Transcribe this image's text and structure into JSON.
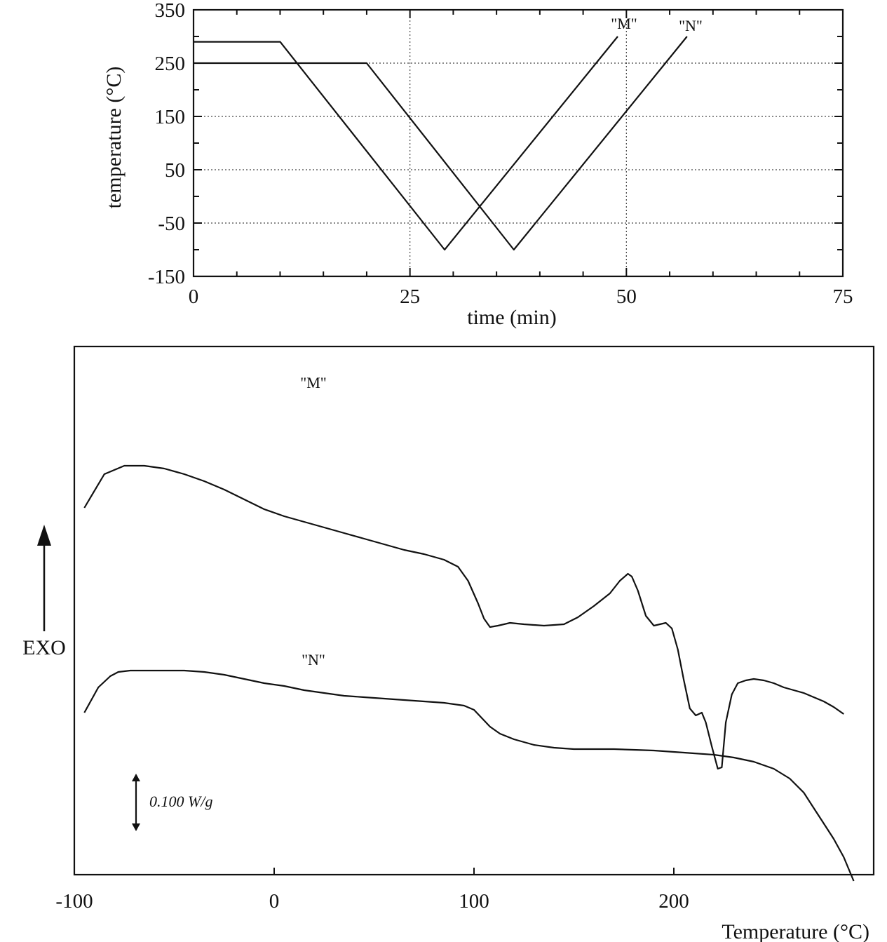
{
  "chart_data": [
    {
      "type": "line",
      "title": "",
      "xlabel": "time (min)",
      "ylabel": "temperature (°C)",
      "xlim": [
        0,
        75
      ],
      "ylim": [
        -150,
        350
      ],
      "xticks": [
        "0",
        "25",
        "50",
        "75"
      ],
      "yticks": [
        "350",
        "250",
        "150",
        "50",
        "-50",
        "-150"
      ],
      "grid": true,
      "series": [
        {
          "name": "\"M\"",
          "x": [
            0,
            10,
            29,
            49
          ],
          "y": [
            290,
            290,
            -100,
            300
          ]
        },
        {
          "name": "\"N\"",
          "x": [
            0,
            20,
            37,
            57
          ],
          "y": [
            250,
            250,
            -100,
            300
          ]
        }
      ]
    },
    {
      "type": "line",
      "title": "",
      "xlabel": "Temperature (°C)",
      "ylabel": "EXO",
      "xlim": [
        -100,
        300
      ],
      "xticks": [
        "-100",
        "0",
        "100",
        "200"
      ],
      "y_units": "W/g (relative, offset curves)",
      "scale_bar": "0.100 W/g",
      "grid": false,
      "series": [
        {
          "name": "\"M\"",
          "x": [
            -95,
            -85,
            -75,
            -65,
            -55,
            -45,
            -35,
            -25,
            -15,
            -5,
            5,
            15,
            25,
            35,
            45,
            55,
            65,
            75,
            85,
            92,
            97,
            102,
            105,
            108,
            112,
            118,
            125,
            135,
            145,
            152,
            160,
            168,
            173,
            177,
            179,
            182,
            186,
            190,
            193,
            196,
            199,
            202,
            205,
            208,
            211,
            214,
            216,
            219,
            222,
            224,
            226,
            229,
            232,
            236,
            240,
            245,
            250,
            255,
            260,
            265,
            270,
            275,
            280,
            285
          ],
          "y": [
            1.38,
            1.62,
            1.68,
            1.68,
            1.66,
            1.62,
            1.57,
            1.51,
            1.44,
            1.37,
            1.32,
            1.28,
            1.24,
            1.2,
            1.16,
            1.12,
            1.08,
            1.05,
            1.01,
            0.96,
            0.86,
            0.7,
            0.59,
            0.53,
            0.54,
            0.56,
            0.55,
            0.54,
            0.55,
            0.6,
            0.68,
            0.77,
            0.86,
            0.91,
            0.89,
            0.79,
            0.61,
            0.54,
            0.55,
            0.56,
            0.52,
            0.37,
            0.15,
            -0.05,
            -0.1,
            -0.08,
            -0.15,
            -0.32,
            -0.48,
            -0.47,
            -0.15,
            0.05,
            0.13,
            0.15,
            0.16,
            0.15,
            0.13,
            0.1,
            0.08,
            0.06,
            0.03,
            0.0,
            -0.04,
            -0.09
          ]
        },
        {
          "name": "\"N\"",
          "x": [
            -95,
            -88,
            -82,
            -78,
            -72,
            -65,
            -55,
            -45,
            -35,
            -25,
            -15,
            -5,
            5,
            15,
            25,
            35,
            45,
            55,
            65,
            75,
            85,
            95,
            100,
            104,
            108,
            113,
            120,
            130,
            140,
            150,
            170,
            190,
            200,
            210,
            220,
            230,
            240,
            250,
            258,
            265,
            270,
            275,
            280,
            285,
            290
          ],
          "y": [
            -0.08,
            0.1,
            0.18,
            0.21,
            0.22,
            0.22,
            0.22,
            0.22,
            0.21,
            0.19,
            0.16,
            0.13,
            0.11,
            0.08,
            0.06,
            0.04,
            0.03,
            0.02,
            0.01,
            0.0,
            -0.01,
            -0.03,
            -0.06,
            -0.12,
            -0.18,
            -0.23,
            -0.27,
            -0.31,
            -0.33,
            -0.34,
            -0.34,
            -0.35,
            -0.36,
            -0.37,
            -0.38,
            -0.4,
            -0.43,
            -0.48,
            -0.55,
            -0.65,
            -0.76,
            -0.87,
            -0.98,
            -1.11,
            -1.28
          ]
        }
      ]
    }
  ],
  "labels": {
    "exo": "EXO",
    "scale_bar": "0.100 W/g",
    "top_m": "\"M\"",
    "top_n": "\"N\"",
    "bottom_m": "\"M\"",
    "bottom_n": "\"N\""
  }
}
